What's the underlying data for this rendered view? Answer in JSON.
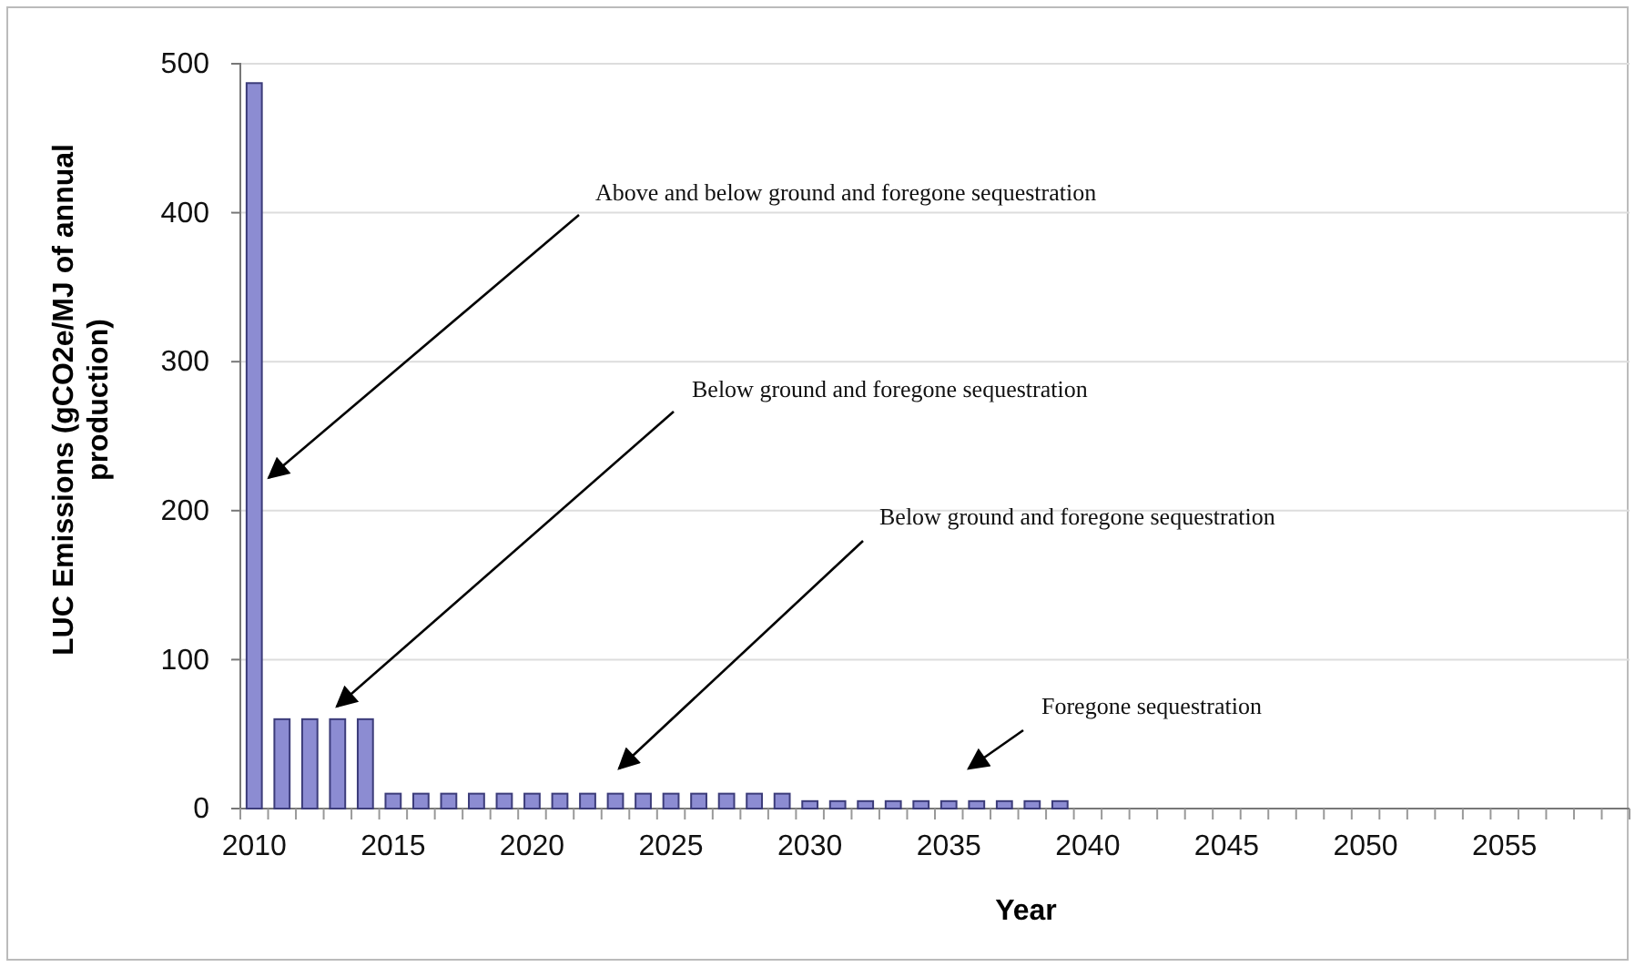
{
  "chart_data": {
    "type": "bar",
    "xlabel": "Year",
    "ylabel": "LUC Emissions (gCO2e/MJ of annual production)",
    "categories": [
      "2010",
      null,
      null,
      null,
      null,
      "2015",
      null,
      null,
      null,
      null,
      "2020",
      null,
      null,
      null,
      null,
      "2025",
      null,
      null,
      null,
      null,
      "2030",
      null,
      null,
      null,
      null,
      "2035",
      null,
      null,
      null,
      null,
      "2040",
      null,
      null,
      null,
      null,
      "2045",
      null,
      null,
      null,
      null,
      "2050",
      null,
      null,
      null,
      null,
      "2055",
      null,
      null,
      null,
      null
    ],
    "values": [
      487,
      60,
      60,
      60,
      60,
      10,
      10,
      10,
      10,
      10,
      10,
      10,
      10,
      10,
      10,
      10,
      10,
      10,
      10,
      10,
      5,
      5,
      5,
      5,
      5,
      5,
      5,
      5,
      5,
      5,
      0,
      0,
      0,
      0,
      0,
      0,
      0,
      0,
      0,
      0,
      0,
      0,
      0,
      0,
      0,
      0,
      0,
      0,
      0,
      0
    ],
    "color": "#8c8cd2",
    "ylim": [
      0,
      500
    ],
    "yticks": [
      0,
      100,
      200,
      300,
      400,
      500
    ],
    "grid": "y",
    "annotations": [
      {
        "text": "Above and below ground and foregone sequestration",
        "x": "2010",
        "y": 222
      },
      "Below ground and foregone sequestration",
      "Below ground and foregone sequestration",
      "Foregone sequestration"
    ]
  }
}
